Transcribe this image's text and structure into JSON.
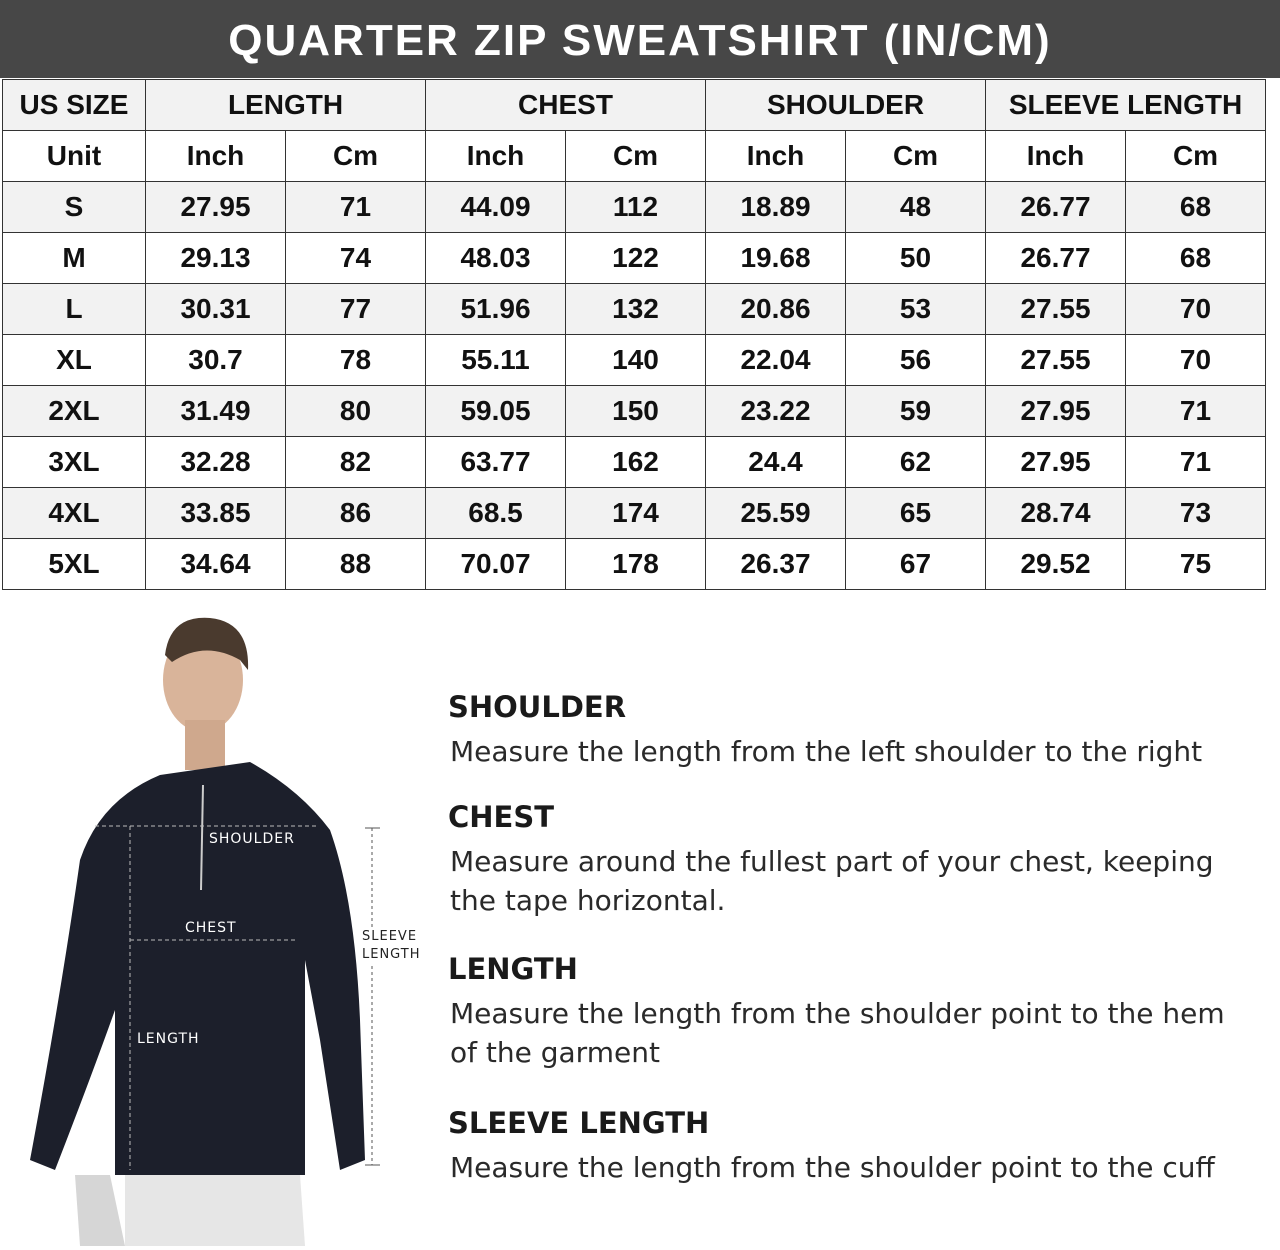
{
  "title": "QUARTER ZIP SWEATSHIRT (IN/CM)",
  "table": {
    "groups": [
      "US SIZE",
      "LENGTH",
      "CHEST",
      "SHOULDER",
      "SLEEVE LENGTH"
    ],
    "units": [
      "Unit",
      "Inch",
      "Cm",
      "Inch",
      "Cm",
      "Inch",
      "Cm",
      "Inch",
      "Cm"
    ],
    "rows": [
      [
        "S",
        "27.95",
        "71",
        "44.09",
        "112",
        "18.89",
        "48",
        "26.77",
        "68"
      ],
      [
        "M",
        "29.13",
        "74",
        "48.03",
        "122",
        "19.68",
        "50",
        "26.77",
        "68"
      ],
      [
        "L",
        "30.31",
        "77",
        "51.96",
        "132",
        "20.86",
        "53",
        "27.55",
        "70"
      ],
      [
        "XL",
        "30.7",
        "78",
        "55.11",
        "140",
        "22.04",
        "56",
        "27.55",
        "70"
      ],
      [
        "2XL",
        "31.49",
        "80",
        "59.05",
        "150",
        "23.22",
        "59",
        "27.95",
        "71"
      ],
      [
        "3XL",
        "32.28",
        "82",
        "63.77",
        "162",
        "24.4",
        "62",
        "27.95",
        "71"
      ],
      [
        "4XL",
        "33.85",
        "86",
        "68.5",
        "174",
        "25.59",
        "65",
        "28.74",
        "73"
      ],
      [
        "5XL",
        "34.64",
        "88",
        "70.07",
        "178",
        "26.37",
        "67",
        "29.52",
        "75"
      ]
    ]
  },
  "figure": {
    "shoulder": "SHOULDER",
    "chest": "CHEST",
    "length": "LENGTH",
    "sleeve1": "SLEEVE",
    "sleeve2": "LENGTH"
  },
  "guide": [
    {
      "heading": "SHOULDER",
      "text": "Measure the length from the left shoulder to the right"
    },
    {
      "heading": "CHEST",
      "text": "Measure around the fullest part of your chest, keeping the tape horizontal."
    },
    {
      "heading": "LENGTH",
      "text": "Measure the length from the shoulder point to the hem of the garment"
    },
    {
      "heading": "SLEEVE LENGTH",
      "text": "Measure the length from the shoulder point to the cuff"
    }
  ]
}
